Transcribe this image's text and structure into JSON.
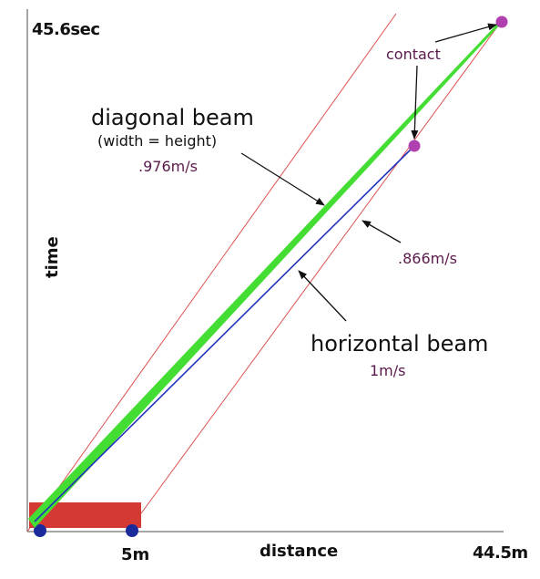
{
  "axes": {
    "y_max_label": "45.6sec",
    "x_max_label": "44.5m",
    "x_mark_label": "5m",
    "x_axis_title": "distance",
    "y_axis_title": "time"
  },
  "labels": {
    "contact": "contact",
    "diagonal_beam": "diagonal beam",
    "diagonal_note": "(width = height)",
    "diagonal_speed": ".976m/s",
    "slanted_speed": ".866m/s",
    "horizontal_beam": "horizontal beam",
    "horizontal_speed": "1m/s"
  },
  "colors": {
    "axis": "#888888",
    "cart": "#d43a33",
    "wheel": "#1a2a9a",
    "diagonal_beam": "#44dd33",
    "horizontal_beam": "#2233bb",
    "guide_lines": "#e05050",
    "contact_point": "#b040b0",
    "speed_text": "#5a1a4a",
    "text": "#111111"
  }
}
